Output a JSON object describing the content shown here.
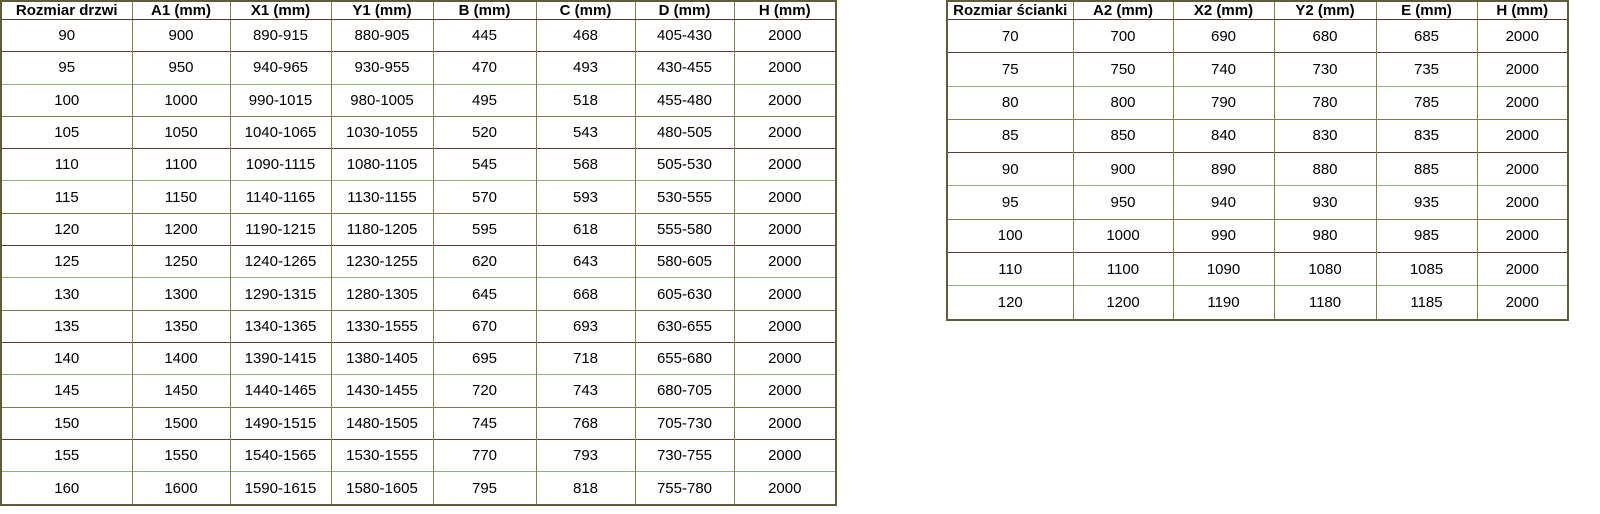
{
  "door_table": {
    "name": "Rozmiar drzwi",
    "headers": [
      "Rozmiar drzwi",
      "A1 (mm)",
      "X1 (mm)",
      "Y1 (mm)",
      "B (mm)",
      "C (mm)",
      "D (mm)",
      "H (mm)"
    ],
    "rows": [
      [
        "90",
        "900",
        "890-915",
        "880-905",
        "445",
        "468",
        "405-430",
        "2000"
      ],
      [
        "95",
        "950",
        "940-965",
        "930-955",
        "470",
        "493",
        "430-455",
        "2000"
      ],
      [
        "100",
        "1000",
        "990-1015",
        "980-1005",
        "495",
        "518",
        "455-480",
        "2000"
      ],
      [
        "105",
        "1050",
        "1040-1065",
        "1030-1055",
        "520",
        "543",
        "480-505",
        "2000"
      ],
      [
        "110",
        "1100",
        "1090-1115",
        "1080-1105",
        "545",
        "568",
        "505-530",
        "2000"
      ],
      [
        "115",
        "1150",
        "1140-1165",
        "1130-1155",
        "570",
        "593",
        "530-555",
        "2000"
      ],
      [
        "120",
        "1200",
        "1190-1215",
        "1180-1205",
        "595",
        "618",
        "555-580",
        "2000"
      ],
      [
        "125",
        "1250",
        "1240-1265",
        "1230-1255",
        "620",
        "643",
        "580-605",
        "2000"
      ],
      [
        "130",
        "1300",
        "1290-1315",
        "1280-1305",
        "645",
        "668",
        "605-630",
        "2000"
      ],
      [
        "135",
        "1350",
        "1340-1365",
        "1330-1555",
        "670",
        "693",
        "630-655",
        "2000"
      ],
      [
        "140",
        "1400",
        "1390-1415",
        "1380-1405",
        "695",
        "718",
        "655-680",
        "2000"
      ],
      [
        "145",
        "1450",
        "1440-1465",
        "1430-1455",
        "720",
        "743",
        "680-705",
        "2000"
      ],
      [
        "150",
        "1500",
        "1490-1515",
        "1480-1505",
        "745",
        "768",
        "705-730",
        "2000"
      ],
      [
        "155",
        "1550",
        "1540-1565",
        "1530-1555",
        "770",
        "793",
        "730-755",
        "2000"
      ],
      [
        "160",
        "1600",
        "1590-1615",
        "1580-1605",
        "795",
        "818",
        "755-780",
        "2000"
      ]
    ]
  },
  "wall_table": {
    "name": "Rozmiar ścianki",
    "headers": [
      "Rozmiar ścianki",
      "A2 (mm)",
      "X2 (mm)",
      "Y2 (mm)",
      "E (mm)",
      "H (mm)"
    ],
    "rows": [
      [
        "70",
        "700",
        "690",
        "680",
        "685",
        "2000"
      ],
      [
        "75",
        "750",
        "740",
        "730",
        "735",
        "2000"
      ],
      [
        "80",
        "800",
        "790",
        "780",
        "785",
        "2000"
      ],
      [
        "85",
        "850",
        "840",
        "830",
        "835",
        "2000"
      ],
      [
        "90",
        "900",
        "890",
        "880",
        "885",
        "2000"
      ],
      [
        "95",
        "950",
        "940",
        "930",
        "935",
        "2000"
      ],
      [
        "100",
        "1000",
        "990",
        "980",
        "985",
        "2000"
      ],
      [
        "110",
        "1100",
        "1090",
        "1080",
        "1085",
        "2000"
      ],
      [
        "120",
        "1200",
        "1190",
        "1180",
        "1185",
        "2000"
      ]
    ]
  },
  "colors": {
    "outer_border": "#5e5c3a",
    "vertical_rule": "#82804e",
    "rule_olive": "#7d7b50",
    "rule_maroon": "#5f3a37",
    "rule_green": "#8fae79",
    "background": "#ffffff",
    "text": "#000000"
  }
}
